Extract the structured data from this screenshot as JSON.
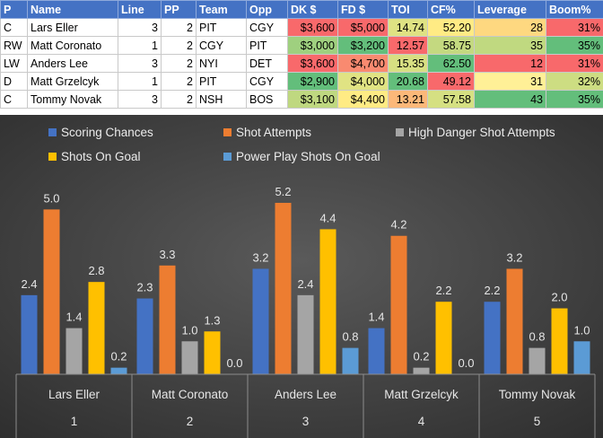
{
  "table": {
    "headers": [
      "P",
      "Name",
      "Line",
      "PP",
      "Team",
      "Opp",
      "DK $",
      "FD $",
      "TOI",
      "CF%",
      "Leverage",
      "Boom%"
    ],
    "rows": [
      [
        "C",
        "Lars Eller",
        "3",
        "2",
        "PIT",
        "CGY",
        "$3,600",
        "$5,000",
        "14.74",
        "52.20",
        "28",
        "31%"
      ],
      [
        "RW",
        "Matt Coronato",
        "1",
        "2",
        "CGY",
        "PIT",
        "$3,000",
        "$3,200",
        "12.57",
        "58.75",
        "35",
        "35%"
      ],
      [
        "LW",
        "Anders Lee",
        "3",
        "2",
        "NYI",
        "DET",
        "$3,600",
        "$4,700",
        "15.35",
        "62.50",
        "12",
        "31%"
      ],
      [
        "D",
        "Matt Grzelcyk",
        "1",
        "2",
        "PIT",
        "CGY",
        "$2,900",
        "$4,000",
        "20.68",
        "49.12",
        "31",
        "32%"
      ],
      [
        "C",
        "Tommy Novak",
        "3",
        "2",
        "NSH",
        "BOS",
        "$3,100",
        "$4,400",
        "13.21",
        "57.58",
        "43",
        "35%"
      ]
    ],
    "cell_colors": [
      [
        "#ffffff",
        "#ffffff",
        "#ffffff",
        "#ffffff",
        "#ffffff",
        "#ffffff",
        "#f8696b",
        "#f8696b",
        "#dfe283",
        "#ffeb84",
        "#fed880",
        "#f8696b"
      ],
      [
        "#ffffff",
        "#ffffff",
        "#ffffff",
        "#ffffff",
        "#ffffff",
        "#ffffff",
        "#9fd07f",
        "#63be7b",
        "#f8696b",
        "#c4d980",
        "#c0d980",
        "#63be7b"
      ],
      [
        "#ffffff",
        "#ffffff",
        "#ffffff",
        "#ffffff",
        "#ffffff",
        "#ffffff",
        "#f8696b",
        "#f98a70",
        "#d7df82",
        "#63be7b",
        "#f8696b",
        "#f8696b"
      ],
      [
        "#ffffff",
        "#ffffff",
        "#ffffff",
        "#ffffff",
        "#ffffff",
        "#ffffff",
        "#63be7b",
        "#e0e383",
        "#63be7b",
        "#f8696b",
        "#fff097",
        "#cddd82"
      ],
      [
        "#ffffff",
        "#ffffff",
        "#ffffff",
        "#ffffff",
        "#ffffff",
        "#ffffff",
        "#bfd880",
        "#ffeb84",
        "#fcb879",
        "#d5e082",
        "#63be7b",
        "#63be7b"
      ]
    ]
  },
  "chart_data": {
    "type": "bar",
    "background": "#404040",
    "categories": [
      "Lars Eller",
      "Matt Coronato",
      "Anders Lee",
      "Matt Grzelcyk",
      "Tommy Novak"
    ],
    "category_numbers": [
      "1",
      "2",
      "3",
      "4",
      "5"
    ],
    "series": [
      {
        "name": "Scoring Chances",
        "color": "#4472c4",
        "values": [
          2.4,
          2.3,
          3.2,
          1.4,
          2.2
        ]
      },
      {
        "name": "Shot Attempts",
        "color": "#ed7d31",
        "values": [
          5.0,
          3.3,
          5.2,
          4.2,
          3.2
        ]
      },
      {
        "name": "High Danger Shot Attempts",
        "color": "#a5a5a5",
        "values": [
          1.4,
          1.0,
          2.4,
          0.2,
          0.8
        ]
      },
      {
        "name": "Shots On Goal",
        "color": "#ffc000",
        "values": [
          2.8,
          1.3,
          4.4,
          2.2,
          2.0
        ]
      },
      {
        "name": "Power Play Shots On Goal",
        "color": "#5b9bd5",
        "values": [
          0.2,
          0.0,
          0.8,
          0.0,
          1.0
        ]
      }
    ],
    "ylim": [
      0,
      5.5
    ],
    "grid": false,
    "data_labels": true,
    "legend_position": "top"
  }
}
